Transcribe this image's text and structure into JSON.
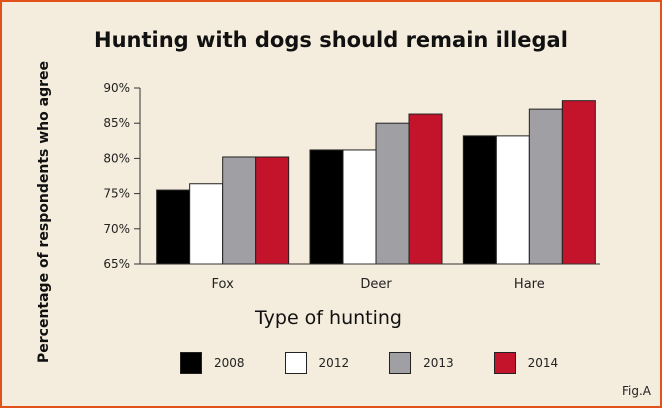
{
  "figure_label": "Fig.A",
  "chart_data": {
    "type": "bar",
    "title": "Hunting with dogs should remain illegal",
    "xlabel": "Type of hunting",
    "ylabel": "Percentage of respondents who agree",
    "ylim": [
      65,
      90
    ],
    "yticks": [
      "65%",
      "70%",
      "75%",
      "80%",
      "85%",
      "90%"
    ],
    "categories": [
      "Fox",
      "Deer",
      "Hare"
    ],
    "series": [
      {
        "name": "2008",
        "color": "#000000",
        "values": [
          75.5,
          81.2,
          83.2
        ]
      },
      {
        "name": "2012",
        "color": "#ffffff",
        "values": [
          76.4,
          81.2,
          83.2
        ]
      },
      {
        "name": "2013",
        "color": "#a0a0a4",
        "values": [
          80.2,
          85.0,
          87.0
        ]
      },
      {
        "name": "2014",
        "color": "#c4142c",
        "values": [
          80.2,
          86.3,
          88.2
        ]
      }
    ],
    "legend_position": "bottom",
    "grid": false
  }
}
